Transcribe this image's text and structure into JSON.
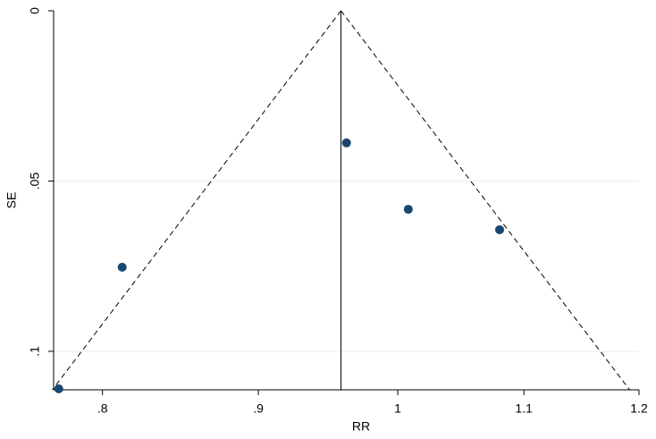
{
  "chart_data": {
    "type": "scatter",
    "x_label": "RR",
    "y_label": "SE",
    "x": [
      0.774,
      0.812,
      0.962,
      1.008,
      1.08
    ],
    "values": [
      0.111,
      0.0753,
      0.0388,
      0.0583,
      0.0643
    ],
    "color": "#1a476f",
    "xlim": [
      0.771,
      1.2
    ],
    "xscale": "log",
    "xticks": [
      {
        "value": 0.8,
        "label": ".8"
      },
      {
        "value": 0.9,
        "label": ".9"
      },
      1,
      {
        "value": 1.1,
        "label": "1.1"
      },
      {
        "value": 1.2,
        "label": "1.2"
      }
    ],
    "ylim": [
      0,
      0.1113
    ],
    "y_reversed": true,
    "yticks": [
      0,
      {
        "value": 0.05,
        "label": ".05"
      },
      {
        "value": 0.1,
        "label": ".1"
      }
    ],
    "grid": true,
    "pooled": 0.958,
    "funnel_z": 1.96
  }
}
